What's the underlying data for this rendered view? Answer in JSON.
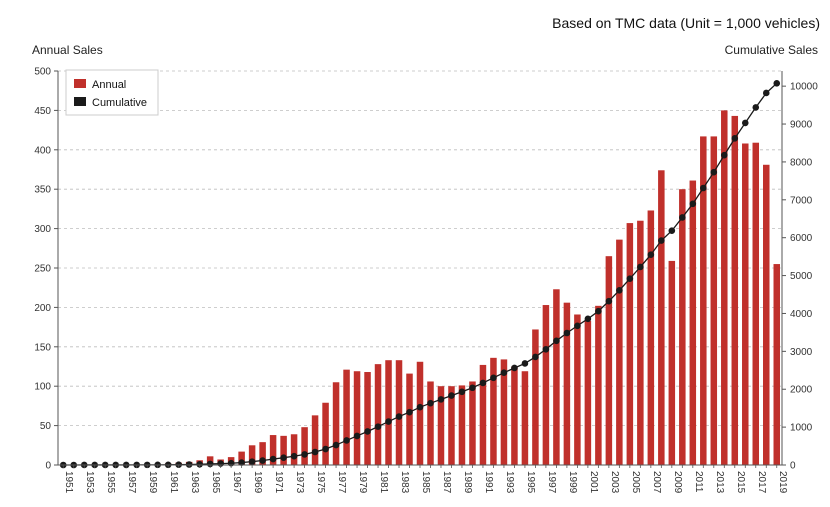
{
  "chart_data": {
    "type": "bar",
    "title": "",
    "subtitle": "Based on TMC data (Unit = 1,000 vehicles)",
    "ylabel": "Annual Sales",
    "y2label": "Cumulative Sales",
    "xlabel": "",
    "ylim": [
      0,
      500
    ],
    "y2lim": [
      0,
      10400
    ],
    "yticks": [
      0,
      50,
      100,
      150,
      200,
      250,
      300,
      350,
      400,
      450,
      500
    ],
    "y2ticks": [
      0,
      1000,
      2000,
      3000,
      4000,
      5000,
      6000,
      7000,
      8000,
      9000,
      10000
    ],
    "grid": true,
    "legend_position": "top-left",
    "x": [
      1951,
      1952,
      1953,
      1954,
      1955,
      1956,
      1957,
      1958,
      1959,
      1960,
      1961,
      1962,
      1963,
      1964,
      1965,
      1966,
      1967,
      1968,
      1969,
      1970,
      1971,
      1972,
      1973,
      1974,
      1975,
      1976,
      1977,
      1978,
      1979,
      1980,
      1981,
      1982,
      1983,
      1984,
      1985,
      1986,
      1987,
      1988,
      1989,
      1990,
      1991,
      1992,
      1993,
      1994,
      1995,
      1996,
      1997,
      1998,
      1999,
      2000,
      2001,
      2002,
      2003,
      2004,
      2005,
      2006,
      2007,
      2008,
      2009,
      2010,
      2011,
      2012,
      2013,
      2014,
      2015,
      2016,
      2017,
      2018,
      2019
    ],
    "xtick_labels": [
      "1951",
      "1953",
      "1955",
      "1957",
      "1959",
      "1961",
      "1963",
      "1965",
      "1967",
      "1969",
      "1971",
      "1973",
      "1975",
      "1977",
      "1979",
      "1981",
      "1983",
      "1985",
      "1987",
      "1989",
      "1991",
      "1993",
      "1995",
      "1997",
      "1999",
      "2001",
      "2003",
      "2005",
      "2007",
      "2009",
      "2011",
      "2013",
      "2015",
      "2017",
      "2019"
    ],
    "series": [
      {
        "name": "Annual",
        "type": "bar",
        "color": "#c0302b",
        "values": [
          0.1,
          0.2,
          0.2,
          0.3,
          0.3,
          0.3,
          0.4,
          0.5,
          0.6,
          1,
          2,
          3,
          4,
          6,
          11,
          7,
          10,
          17,
          25,
          29,
          38,
          37,
          39,
          48,
          63,
          79,
          105,
          121,
          119,
          118,
          128,
          133,
          133,
          116,
          131,
          106,
          100,
          100,
          101,
          106,
          127,
          136,
          134,
          125,
          119,
          172,
          203,
          223,
          206,
          191,
          183,
          202,
          265,
          286,
          307,
          310,
          323,
          374,
          259,
          350,
          361,
          417,
          417,
          450,
          443,
          408,
          409,
          381,
          255
        ]
      },
      {
        "name": "Cumulative",
        "type": "line",
        "color": "#1a1a1a",
        "values": [
          0,
          0,
          1,
          1,
          1,
          2,
          2,
          3,
          3,
          4,
          6,
          9,
          13,
          19,
          30,
          37,
          47,
          64,
          89,
          118,
          156,
          193,
          232,
          280,
          343,
          422,
          527,
          648,
          767,
          885,
          1013,
          1146,
          1279,
          1395,
          1526,
          1632,
          1732,
          1832,
          1933,
          2039,
          2166,
          2302,
          2436,
          2561,
          2680,
          2852,
          3055,
          3278,
          3484,
          3675,
          3858,
          4060,
          4325,
          4611,
          4918,
          5228,
          5551,
          5925,
          6184,
          6534,
          6895,
          7312,
          7729,
          8179,
          8622,
          9030,
          9439,
          9820,
          10075
        ]
      }
    ]
  }
}
